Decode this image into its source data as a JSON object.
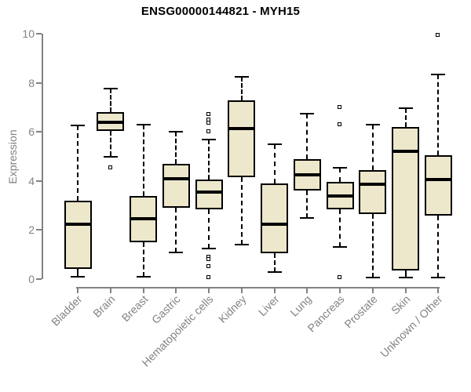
{
  "chart_data": {
    "type": "boxplot",
    "title": "ENSG00000144821 - MYH15",
    "xlabel": "",
    "ylabel": "Expression",
    "ylim": [
      0,
      10
    ],
    "yticks": [
      0,
      2,
      4,
      6,
      8,
      10
    ],
    "grid": false,
    "legend": false,
    "whisker_style": "dashed",
    "outlier_marker": "open-square",
    "box_fill": "#ede7cb",
    "box_border": "#000000",
    "axis_color": "#828282",
    "title_color": "#000000",
    "categories": [
      "Bladder",
      "Brain",
      "Breast",
      "Gastric",
      "Hematopoietic cells",
      "Kidney",
      "Liver",
      "Lung",
      "Pancreas",
      "Prostate",
      "Skin",
      "Unknown / Other"
    ],
    "series": [
      {
        "name": "Bladder",
        "low": 0.1,
        "q1": 0.4,
        "median": 2.25,
        "q3": 3.2,
        "high": 6.25,
        "outliers": []
      },
      {
        "name": "Brain",
        "low": 5.0,
        "q1": 6.05,
        "median": 6.4,
        "q3": 6.8,
        "high": 7.75,
        "outliers": [
          4.55
        ]
      },
      {
        "name": "Breast",
        "low": 0.1,
        "q1": 1.5,
        "median": 2.45,
        "q3": 3.4,
        "high": 6.3,
        "outliers": []
      },
      {
        "name": "Gastric",
        "low": 1.1,
        "q1": 2.9,
        "median": 4.1,
        "q3": 4.7,
        "high": 6.0,
        "outliers": []
      },
      {
        "name": "Hematopoietic cells",
        "low": 1.25,
        "q1": 2.85,
        "median": 3.55,
        "q3": 4.05,
        "high": 5.7,
        "outliers": [
          6.7,
          6.5,
          6.35,
          6.0,
          0.9,
          0.8,
          0.5,
          0.05
        ]
      },
      {
        "name": "Kidney",
        "low": 1.4,
        "q1": 4.15,
        "median": 6.15,
        "q3": 7.3,
        "high": 8.25,
        "outliers": []
      },
      {
        "name": "Liver",
        "low": 0.3,
        "q1": 1.05,
        "median": 2.25,
        "q3": 3.9,
        "high": 5.5,
        "outliers": []
      },
      {
        "name": "Lung",
        "low": 2.5,
        "q1": 3.6,
        "median": 4.25,
        "q3": 4.9,
        "high": 6.75,
        "outliers": []
      },
      {
        "name": "Pancreas",
        "low": 1.3,
        "q1": 2.85,
        "median": 3.4,
        "q3": 3.95,
        "high": 4.55,
        "outliers": [
          7.0,
          6.3,
          0.05
        ]
      },
      {
        "name": "Prostate",
        "low": 0.05,
        "q1": 2.65,
        "median": 3.85,
        "q3": 4.45,
        "high": 6.3,
        "outliers": []
      },
      {
        "name": "Skin",
        "low": 0.05,
        "q1": 0.35,
        "median": 5.2,
        "q3": 6.2,
        "high": 6.95,
        "outliers": []
      },
      {
        "name": "Unknown / Other",
        "low": 0.05,
        "q1": 2.6,
        "median": 4.05,
        "q3": 5.05,
        "high": 8.35,
        "outliers": [
          9.95
        ]
      }
    ]
  }
}
